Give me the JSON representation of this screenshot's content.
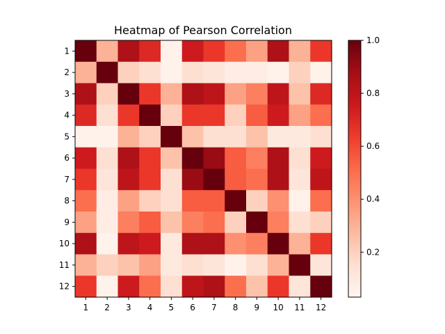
{
  "chart_data": {
    "type": "heatmap",
    "title": "Heatmap of Pearson Correlation",
    "xlabel": "",
    "ylabel": "",
    "x_categories": [
      "1",
      "2",
      "3",
      "4",
      "5",
      "6",
      "7",
      "8",
      "9",
      "10",
      "11",
      "12"
    ],
    "y_categories": [
      "1",
      "2",
      "3",
      "4",
      "5",
      "6",
      "7",
      "8",
      "9",
      "10",
      "11",
      "12"
    ],
    "values": [
      [
        1.0,
        0.3,
        0.85,
        0.7,
        0.05,
        0.75,
        0.65,
        0.5,
        0.35,
        0.85,
        0.3,
        0.65
      ],
      [
        0.3,
        1.0,
        0.2,
        0.15,
        0.05,
        0.15,
        0.12,
        0.08,
        0.08,
        0.05,
        0.2,
        0.05
      ],
      [
        0.85,
        0.2,
        1.0,
        0.65,
        0.3,
        0.85,
        0.8,
        0.35,
        0.45,
        0.8,
        0.25,
        0.7
      ],
      [
        0.7,
        0.15,
        0.65,
        1.0,
        0.2,
        0.65,
        0.65,
        0.2,
        0.55,
        0.75,
        0.35,
        0.5
      ],
      [
        0.05,
        0.05,
        0.3,
        0.2,
        1.0,
        0.25,
        0.15,
        0.15,
        0.25,
        0.1,
        0.1,
        0.15
      ],
      [
        0.75,
        0.15,
        0.85,
        0.65,
        0.25,
        1.0,
        0.9,
        0.55,
        0.45,
        0.85,
        0.15,
        0.75
      ],
      [
        0.65,
        0.12,
        0.8,
        0.65,
        0.15,
        0.9,
        1.0,
        0.55,
        0.5,
        0.85,
        0.12,
        0.8
      ],
      [
        0.5,
        0.08,
        0.35,
        0.2,
        0.15,
        0.55,
        0.55,
        1.0,
        0.2,
        0.4,
        0.05,
        0.5
      ],
      [
        0.35,
        0.08,
        0.45,
        0.55,
        0.25,
        0.45,
        0.5,
        0.2,
        1.0,
        0.45,
        0.15,
        0.2
      ],
      [
        0.85,
        0.05,
        0.8,
        0.75,
        0.1,
        0.85,
        0.85,
        0.4,
        0.45,
        1.0,
        0.3,
        0.65
      ],
      [
        0.3,
        0.2,
        0.25,
        0.35,
        0.1,
        0.15,
        0.12,
        0.05,
        0.15,
        0.3,
        1.0,
        0.12
      ],
      [
        0.65,
        0.05,
        0.75,
        0.5,
        0.15,
        0.8,
        0.85,
        0.5,
        0.25,
        0.65,
        0.12,
        1.0
      ]
    ],
    "colorbar": {
      "colormap": "Reds",
      "range": [
        0.03,
        1.0
      ],
      "ticks": [
        0.2,
        0.4,
        0.6,
        0.8,
        1.0
      ],
      "tick_labels": [
        "0.2",
        "0.4",
        "0.6",
        "0.8",
        "1.0"
      ]
    },
    "colorscale_stops": [
      "#fff5f0",
      "#fee0d2",
      "#fcbba1",
      "#fc9272",
      "#fb6a4a",
      "#ef3b2c",
      "#cb181d",
      "#a50f15",
      "#67000d"
    ],
    "grid": false
  }
}
